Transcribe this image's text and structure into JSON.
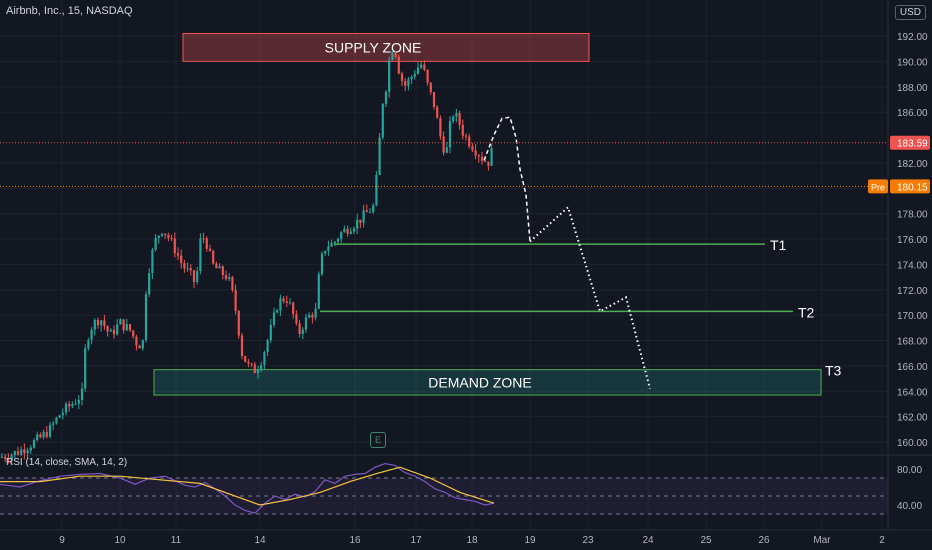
{
  "header": {
    "symbol": "Airbnb, Inc., 15, NASDAQ",
    "currency": "USD"
  },
  "indicator": {
    "rsi_label": "RSI (14, close, SMA, 14, 2)",
    "levels": [
      "80.00",
      "40.00"
    ]
  },
  "earnings_icon": "E",
  "colors": {
    "background": "#131722",
    "up": "#26a69a",
    "down": "#ef5350",
    "supply_zone": "#ef5350",
    "demand_zone": "#26a69a",
    "target_line": "#4caf50",
    "current_price_tag": "#ef5350",
    "pre_price_tag": "#f57c00",
    "rsi_line": "#7e57c2",
    "rsi_sma": "#f5c542"
  },
  "chart_data": {
    "type": "candlestick",
    "y_axis": {
      "min": 159,
      "max": 193,
      "ticks": [
        "160.00",
        "162.00",
        "164.00",
        "166.00",
        "168.00",
        "170.00",
        "172.00",
        "174.00",
        "176.00",
        "178.00",
        "180.00",
        "182.00",
        "186.00",
        "188.00",
        "190.00",
        "192.00"
      ]
    },
    "x_axis_labels": [
      "9",
      "10",
      "11",
      "14",
      "16",
      "17",
      "18",
      "19",
      "23",
      "24",
      "25",
      "26",
      "Mar",
      "2"
    ],
    "current_price": "183.59",
    "pre_market": {
      "label": "Pre",
      "price": "180.15"
    },
    "annotations": {
      "supply_zone": {
        "label": "SUPPLY ZONE",
        "price_low": 190.0,
        "price_high": 192.2
      },
      "demand_zone": {
        "label": "DEMAND ZONE",
        "price_low": 163.7,
        "price_high": 165.7
      },
      "targets": [
        {
          "label": "T1",
          "price": 175.6
        },
        {
          "label": "T2",
          "price": 170.3
        },
        {
          "label": "T3",
          "price": 165.0
        }
      ]
    },
    "price_path": [
      [
        0,
        158.8
      ],
      [
        10,
        159.0
      ],
      [
        20,
        159.3
      ],
      [
        30,
        159.8
      ],
      [
        40,
        160.3
      ],
      [
        50,
        161.0
      ],
      [
        60,
        162.2
      ],
      [
        75,
        163.2
      ],
      [
        82,
        163.8
      ],
      [
        86,
        168.0
      ],
      [
        92,
        169.2
      ],
      [
        100,
        169.8
      ],
      [
        110,
        168.4
      ],
      [
        120,
        169.4
      ],
      [
        130,
        168.8
      ],
      [
        138,
        167.6
      ],
      [
        144,
        168.0
      ],
      [
        146,
        172.0
      ],
      [
        150,
        174.2
      ],
      [
        156,
        176.0
      ],
      [
        162,
        176.8
      ],
      [
        168,
        176.2
      ],
      [
        175,
        175.2
      ],
      [
        182,
        174.0
      ],
      [
        190,
        173.2
      ],
      [
        196,
        172.4
      ],
      [
        200,
        175.8
      ],
      [
        205,
        176.2
      ],
      [
        212,
        174.0
      ],
      [
        220,
        173.4
      ],
      [
        228,
        173.0
      ],
      [
        234,
        171.2
      ],
      [
        238,
        169.2
      ],
      [
        242,
        167.0
      ],
      [
        248,
        166.0
      ],
      [
        254,
        165.6
      ],
      [
        260,
        166.2
      ],
      [
        266,
        167.6
      ],
      [
        272,
        169.2
      ],
      [
        278,
        171.0
      ],
      [
        286,
        171.4
      ],
      [
        292,
        170.4
      ],
      [
        298,
        168.4
      ],
      [
        304,
        169.4
      ],
      [
        310,
        170.0
      ],
      [
        316,
        170.3
      ],
      [
        320,
        174.0
      ],
      [
        326,
        175.5
      ],
      [
        333,
        175.6
      ],
      [
        340,
        176.4
      ],
      [
        350,
        177.0
      ],
      [
        358,
        177.4
      ],
      [
        366,
        178.0
      ],
      [
        374,
        178.6
      ],
      [
        378,
        182.0
      ],
      [
        382,
        186.6
      ],
      [
        386,
        188.0
      ],
      [
        390,
        190.6
      ],
      [
        394,
        191.4
      ],
      [
        398,
        189.6
      ],
      [
        404,
        188.0
      ],
      [
        410,
        188.6
      ],
      [
        416,
        189.4
      ],
      [
        422,
        189.8
      ],
      [
        428,
        188.0
      ],
      [
        434,
        186.6
      ],
      [
        440,
        184.2
      ],
      [
        446,
        182.6
      ],
      [
        452,
        186.0
      ],
      [
        458,
        185.4
      ],
      [
        464,
        184.2
      ],
      [
        470,
        183.6
      ],
      [
        476,
        183.0
      ],
      [
        482,
        182.4
      ],
      [
        488,
        182.0
      ],
      [
        494,
        183.4
      ]
    ],
    "rsi_path": [
      [
        0,
        63
      ],
      [
        20,
        60
      ],
      [
        40,
        67
      ],
      [
        60,
        72
      ],
      [
        80,
        74
      ],
      [
        100,
        75
      ],
      [
        120,
        70
      ],
      [
        135,
        63
      ],
      [
        150,
        70
      ],
      [
        165,
        72
      ],
      [
        175,
        67
      ],
      [
        185,
        62
      ],
      [
        195,
        60
      ],
      [
        205,
        65
      ],
      [
        215,
        58
      ],
      [
        225,
        50
      ],
      [
        235,
        40
      ],
      [
        245,
        34
      ],
      [
        255,
        31
      ],
      [
        265,
        42
      ],
      [
        275,
        50
      ],
      [
        285,
        46
      ],
      [
        295,
        52
      ],
      [
        305,
        49
      ],
      [
        315,
        55
      ],
      [
        325,
        68
      ],
      [
        335,
        64
      ],
      [
        345,
        72
      ],
      [
        355,
        74
      ],
      [
        365,
        75
      ],
      [
        375,
        82
      ],
      [
        385,
        86
      ],
      [
        395,
        84
      ],
      [
        405,
        76
      ],
      [
        415,
        72
      ],
      [
        425,
        66
      ],
      [
        435,
        58
      ],
      [
        445,
        54
      ],
      [
        455,
        48
      ],
      [
        465,
        46
      ],
      [
        475,
        44
      ],
      [
        485,
        40
      ],
      [
        494,
        42
      ]
    ],
    "rsi_sma_path": [
      [
        0,
        66
      ],
      [
        40,
        66
      ],
      [
        80,
        72
      ],
      [
        120,
        72
      ],
      [
        160,
        68
      ],
      [
        200,
        64
      ],
      [
        240,
        48
      ],
      [
        260,
        40
      ],
      [
        290,
        46
      ],
      [
        320,
        54
      ],
      [
        350,
        66
      ],
      [
        380,
        76
      ],
      [
        400,
        82
      ],
      [
        430,
        70
      ],
      [
        460,
        54
      ],
      [
        494,
        42
      ]
    ],
    "projection_path": [
      [
        484,
        182.2
      ],
      [
        494,
        184.2
      ],
      [
        502,
        185.5
      ],
      [
        510,
        185.6
      ],
      [
        516,
        184.0
      ],
      [
        520,
        181.5
      ],
      [
        526,
        179.5
      ],
      [
        530,
        175.8
      ],
      [
        568,
        178.5
      ],
      [
        600,
        170.3
      ],
      [
        626,
        171.4
      ],
      [
        650,
        164.2
      ]
    ]
  }
}
